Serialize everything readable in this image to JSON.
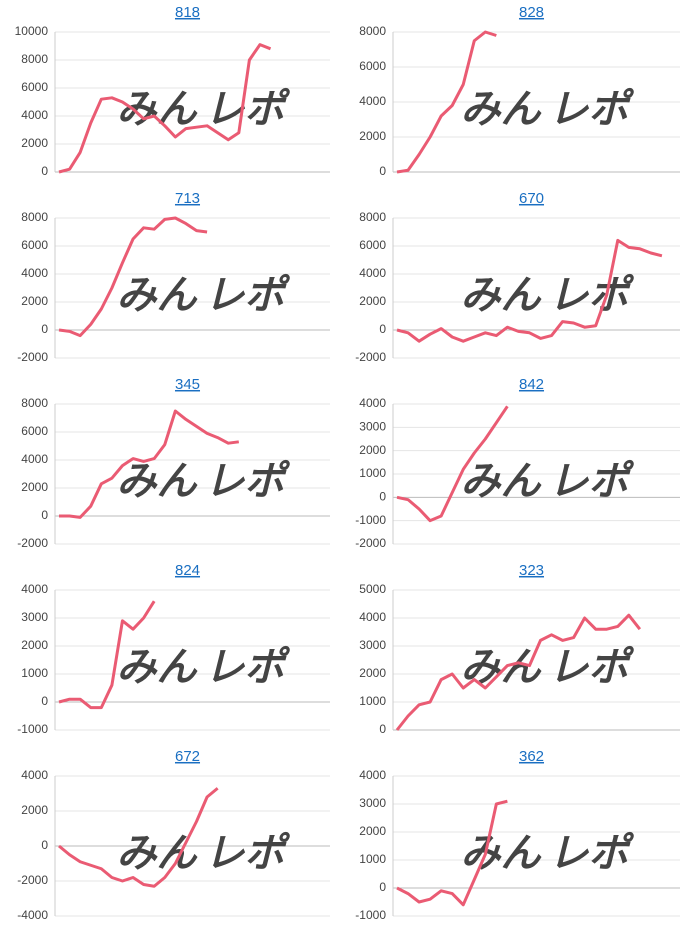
{
  "watermark": [
    "みん",
    "レポ"
  ],
  "chart_data": [
    {
      "type": "line",
      "title": "818",
      "color": "#ea5b73",
      "ylim": [
        0,
        10000
      ],
      "yticks": [
        0,
        2000,
        4000,
        6000,
        8000,
        10000
      ],
      "grid": true,
      "values": [
        0,
        200,
        1400,
        3500,
        5200,
        5300,
        5000,
        4500,
        3800,
        4000,
        3300,
        2500,
        3100,
        3200,
        3300,
        2800,
        2300,
        2800,
        8000,
        9100,
        8800
      ]
    },
    {
      "type": "line",
      "title": "828",
      "color": "#ea5b73",
      "ylim": [
        0,
        8000
      ],
      "yticks": [
        0,
        2000,
        4000,
        6000,
        8000
      ],
      "grid": true,
      "values": [
        0,
        100,
        1000,
        2000,
        3200,
        3800,
        5000,
        7500,
        8000,
        7800
      ]
    },
    {
      "type": "line",
      "title": "713",
      "color": "#ea5b73",
      "ylim": [
        -2000,
        8000
      ],
      "yticks": [
        -2000,
        0,
        2000,
        4000,
        6000,
        8000
      ],
      "grid": true,
      "values": [
        0,
        -100,
        -400,
        400,
        1500,
        3000,
        4800,
        6500,
        7300,
        7200,
        7900,
        8000,
        7600,
        7100,
        7000
      ]
    },
    {
      "type": "line",
      "title": "670",
      "color": "#ea5b73",
      "ylim": [
        -2000,
        8000
      ],
      "yticks": [
        -2000,
        0,
        2000,
        4000,
        6000,
        8000
      ],
      "grid": true,
      "values": [
        0,
        -200,
        -800,
        -300,
        100,
        -500,
        -800,
        -500,
        -200,
        -400,
        200,
        -100,
        -200,
        -600,
        -400,
        600,
        500,
        200,
        300,
        2500,
        6400,
        5900,
        5800,
        5500,
        5300
      ]
    },
    {
      "type": "line",
      "title": "345",
      "color": "#ea5b73",
      "ylim": [
        -2000,
        8000
      ],
      "yticks": [
        -2000,
        0,
        2000,
        4000,
        6000,
        8000
      ],
      "grid": true,
      "values": [
        0,
        0,
        -100,
        700,
        2300,
        2700,
        3600,
        4100,
        3900,
        4100,
        5100,
        7500,
        6900,
        6400,
        5900,
        5600,
        5200,
        5300
      ]
    },
    {
      "type": "line",
      "title": "842",
      "color": "#ea5b73",
      "ylim": [
        -2000,
        4000
      ],
      "yticks": [
        -2000,
        -1000,
        0,
        1000,
        2000,
        3000,
        4000
      ],
      "grid": true,
      "values": [
        0,
        -100,
        -500,
        -1000,
        -800,
        200,
        1200,
        1900,
        2500,
        3200,
        3900
      ]
    },
    {
      "type": "line",
      "title": "824",
      "color": "#ea5b73",
      "ylim": [
        -1000,
        4000
      ],
      "yticks": [
        -1000,
        0,
        1000,
        2000,
        3000,
        4000
      ],
      "grid": true,
      "values": [
        0,
        100,
        100,
        -200,
        -200,
        600,
        2900,
        2600,
        3000,
        3600
      ]
    },
    {
      "type": "line",
      "title": "323",
      "color": "#ea5b73",
      "ylim": [
        0,
        5000
      ],
      "yticks": [
        0,
        1000,
        2000,
        3000,
        4000,
        5000
      ],
      "grid": true,
      "values": [
        0,
        500,
        900,
        1000,
        1800,
        2000,
        1500,
        1800,
        1500,
        1900,
        2300,
        2400,
        2300,
        3200,
        3400,
        3200,
        3300,
        4000,
        3600,
        3600,
        3700,
        4100,
        3600
      ]
    },
    {
      "type": "line",
      "title": "672",
      "color": "#ea5b73",
      "ylim": [
        -4000,
        4000
      ],
      "yticks": [
        -4000,
        -2000,
        0,
        2000,
        4000
      ],
      "grid": true,
      "values": [
        0,
        -500,
        -900,
        -1100,
        -1300,
        -1800,
        -2000,
        -1800,
        -2200,
        -2300,
        -1800,
        -1000,
        200,
        1400,
        2800,
        3300
      ]
    },
    {
      "type": "line",
      "title": "362",
      "color": "#ea5b73",
      "ylim": [
        -1000,
        4000
      ],
      "yticks": [
        -1000,
        0,
        1000,
        2000,
        3000,
        4000
      ],
      "grid": true,
      "values": [
        0,
        -200,
        -500,
        -400,
        -100,
        -200,
        -600,
        300,
        1200,
        3000,
        3100
      ]
    }
  ]
}
